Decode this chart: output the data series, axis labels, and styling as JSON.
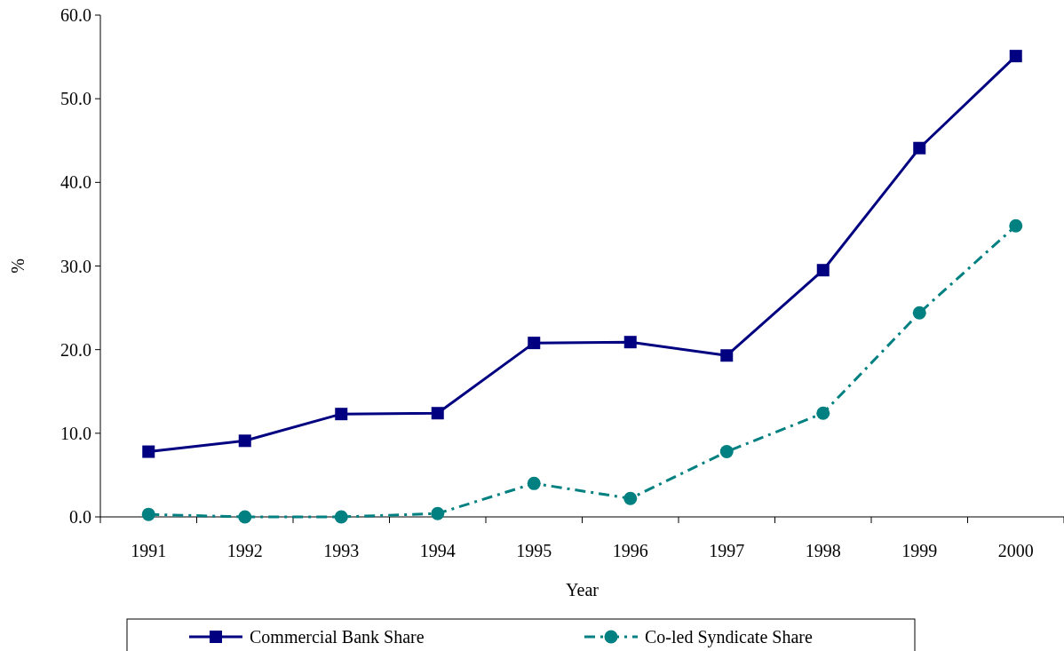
{
  "chart_data": {
    "type": "line",
    "xlabel": "Year",
    "ylabel": "%",
    "categories": [
      "1991",
      "1992",
      "1993",
      "1994",
      "1995",
      "1996",
      "1997",
      "1998",
      "1999",
      "2000"
    ],
    "series": [
      {
        "name": "Commercial Bank Share",
        "color": "#000080",
        "marker": "square",
        "line_style": "solid",
        "values": [
          7.8,
          9.1,
          12.3,
          12.4,
          20.8,
          20.9,
          19.3,
          29.5,
          44.1,
          55.1
        ]
      },
      {
        "name": "Co-led Syndicate Share",
        "color": "#008080",
        "marker": "circle",
        "line_style": "dashed",
        "values": [
          0.3,
          0.0,
          0.0,
          0.4,
          4.0,
          2.2,
          7.8,
          12.4,
          24.4,
          34.8
        ]
      }
    ],
    "ylim": [
      0,
      60
    ],
    "yticks": [
      {
        "value": 0,
        "label": "0.0"
      },
      {
        "value": 10,
        "label": "10.0"
      },
      {
        "value": 20,
        "label": "20.0"
      },
      {
        "value": 30,
        "label": "30.0"
      },
      {
        "value": 40,
        "label": "40.0"
      },
      {
        "value": 50,
        "label": "50.0"
      },
      {
        "value": 60,
        "label": "60.0"
      }
    ],
    "grid": false,
    "legend": "bottom"
  }
}
